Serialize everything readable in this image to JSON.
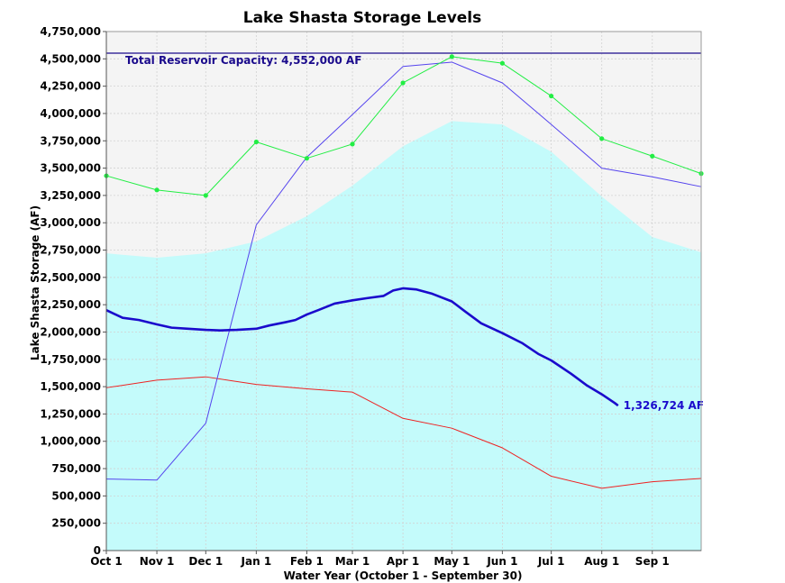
{
  "chart_data": {
    "type": "line",
    "title": "Lake Shasta Storage Levels",
    "xlabel": "Water Year (October 1 - September 30)",
    "ylabel": "Lake Shasta Storage (AF)",
    "x_day_range": [
      0,
      365
    ],
    "ylim": [
      0,
      4750000
    ],
    "grid": true,
    "x_ticks": [
      {
        "label": "Oct 1",
        "day": 0
      },
      {
        "label": "Nov 1",
        "day": 31
      },
      {
        "label": "Dec 1",
        "day": 61
      },
      {
        "label": "Jan 1",
        "day": 92
      },
      {
        "label": "Feb 1",
        "day": 123
      },
      {
        "label": "Mar 1",
        "day": 151
      },
      {
        "label": "Apr 1",
        "day": 182
      },
      {
        "label": "May 1",
        "day": 212
      },
      {
        "label": "Jun 1",
        "day": 243
      },
      {
        "label": "Jul 1",
        "day": 273
      },
      {
        "label": "Aug 1",
        "day": 304
      },
      {
        "label": "Sep 1",
        "day": 335
      }
    ],
    "y_ticks": [
      {
        "label": "0",
        "value": 0
      },
      {
        "label": "250,000",
        "value": 250000
      },
      {
        "label": "500,000",
        "value": 500000
      },
      {
        "label": "750,000",
        "value": 750000
      },
      {
        "label": "1,000,000",
        "value": 1000000
      },
      {
        "label": "1,250,000",
        "value": 1250000
      },
      {
        "label": "1,500,000",
        "value": 1500000
      },
      {
        "label": "1,750,000",
        "value": 1750000
      },
      {
        "label": "2,000,000",
        "value": 2000000
      },
      {
        "label": "2,250,000",
        "value": 2250000
      },
      {
        "label": "2,500,000",
        "value": 2500000
      },
      {
        "label": "2,750,000",
        "value": 2750000
      },
      {
        "label": "3,000,000",
        "value": 3000000
      },
      {
        "label": "3,250,000",
        "value": 3250000
      },
      {
        "label": "3,500,000",
        "value": 3500000
      },
      {
        "label": "3,750,000",
        "value": 3750000
      },
      {
        "label": "4,000,000",
        "value": 4000000
      },
      {
        "label": "4,250,000",
        "value": 4250000
      },
      {
        "label": "4,500,000",
        "value": 4500000
      },
      {
        "label": "4,750,000",
        "value": 4750000
      }
    ],
    "capacity": {
      "value": 4552000,
      "label": "Total Reservoir Capacity: 4,552,000 AF",
      "color": "#1a0a8c"
    },
    "series": [
      {
        "kind": "area",
        "color": "#c4fbfb",
        "x": [
          0,
          31,
          61,
          92,
          123,
          151,
          182,
          212,
          243,
          273,
          304,
          335,
          365
        ],
        "values": [
          2720000,
          2680000,
          2720000,
          2830000,
          3060000,
          3340000,
          3700000,
          3930000,
          3900000,
          3650000,
          3240000,
          2870000,
          2730000
        ]
      },
      {
        "kind": "line",
        "color": "#ee2222",
        "x": [
          0,
          31,
          61,
          92,
          123,
          151,
          182,
          212,
          243,
          273,
          304,
          335,
          365
        ],
        "values": [
          1490000,
          1560000,
          1590000,
          1520000,
          1480000,
          1450000,
          1210000,
          1120000,
          940000,
          680000,
          570000,
          630000,
          660000
        ]
      },
      {
        "kind": "line",
        "color": "#5544ee",
        "x": [
          0,
          31,
          61,
          92,
          123,
          151,
          182,
          212,
          243,
          273,
          304,
          335,
          365
        ],
        "values": [
          655000,
          645000,
          1165000,
          2980000,
          3600000,
          3990000,
          4430000,
          4470000,
          4280000,
          3900000,
          3500000,
          3420000,
          3330000
        ]
      },
      {
        "kind": "line-markers",
        "color": "#22ee44",
        "x": [
          0,
          31,
          61,
          92,
          123,
          151,
          182,
          212,
          243,
          273,
          304,
          335,
          365
        ],
        "values": [
          3430000,
          3300000,
          3250000,
          3740000,
          3590000,
          3720000,
          4280000,
          4520000,
          4460000,
          4160000,
          3770000,
          3610000,
          3450000
        ]
      },
      {
        "kind": "current",
        "color": "#1a0acc",
        "x": [
          0,
          10,
          20,
          31,
          40,
          50,
          61,
          70,
          80,
          92,
          100,
          110,
          116,
          123,
          130,
          140,
          151,
          160,
          170,
          176,
          182,
          190,
          200,
          212,
          220,
          230,
          243,
          255,
          265,
          273,
          285,
          295,
          304,
          312,
          314
        ],
        "values": [
          2200000,
          2130000,
          2110000,
          2070000,
          2040000,
          2030000,
          2020000,
          2015000,
          2020000,
          2030000,
          2060000,
          2090000,
          2110000,
          2160000,
          2200000,
          2260000,
          2290000,
          2310000,
          2330000,
          2380000,
          2400000,
          2390000,
          2350000,
          2280000,
          2190000,
          2080000,
          1990000,
          1900000,
          1800000,
          1740000,
          1620000,
          1510000,
          1430000,
          1350000,
          1326724
        ]
      }
    ],
    "current_label": "1,326,724 AF"
  }
}
